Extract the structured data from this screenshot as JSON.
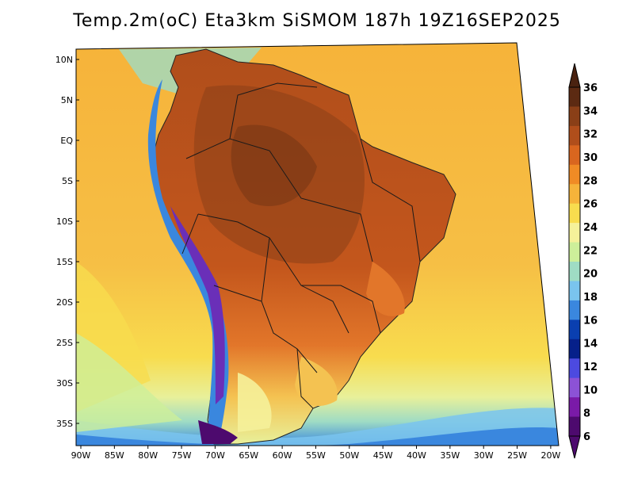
{
  "title": "Temp.2m(oC) Eta3km SiSMOM 187h 19Z16SEP2025",
  "map": {
    "region": "South America",
    "lon_range": [
      -90,
      -20
    ],
    "lat_range": [
      -38,
      12
    ],
    "lat_labels": [
      "10N",
      "5N",
      "EQ",
      "5S",
      "10S",
      "15S",
      "20S",
      "25S",
      "30S",
      "35S"
    ],
    "lat_values": [
      10,
      5,
      0,
      -5,
      -10,
      -15,
      -20,
      -25,
      -30,
      -35
    ],
    "lon_labels": [
      "90W",
      "85W",
      "80W",
      "75W",
      "70W",
      "65W",
      "60W",
      "55W",
      "50W",
      "45W",
      "40W",
      "35W",
      "30W",
      "25W",
      "20W"
    ],
    "lon_values": [
      -90,
      -85,
      -80,
      -75,
      -70,
      -65,
      -60,
      -55,
      -50,
      -45,
      -40,
      -35,
      -30,
      -25,
      -20
    ]
  },
  "colorbar": {
    "labels": [
      "36",
      "34",
      "32",
      "30",
      "28",
      "26",
      "24",
      "22",
      "20",
      "18",
      "16",
      "14",
      "12",
      "10",
      "8",
      "6"
    ],
    "colors": [
      "#5c2a12",
      "#8a3f17",
      "#b04e1b",
      "#d9661f",
      "#f08b25",
      "#f6b33a",
      "#f8dc4e",
      "#f5f19a",
      "#cdef9a",
      "#9fdcc4",
      "#7ac4ee",
      "#3a87de",
      "#0a3fb0",
      "#06208a",
      "#4c4ae0",
      "#8c52d6",
      "#7a1aa8",
      "#4d0a6e"
    ],
    "top_arrow_color": "#4a2210",
    "bottom_arrow_color": "#4d0a6e"
  },
  "legend_unit": "oC",
  "colors": {
    "ocean_warm": "#f6b33a",
    "ocean_mild": "#f8dc4e",
    "ocean_cool": "#cdef9a",
    "land_hot": "#b04e1b",
    "land_very_hot": "#8a3f17",
    "andes_cold": "#3a87de",
    "andes_coldest": "#6a2fb8"
  }
}
